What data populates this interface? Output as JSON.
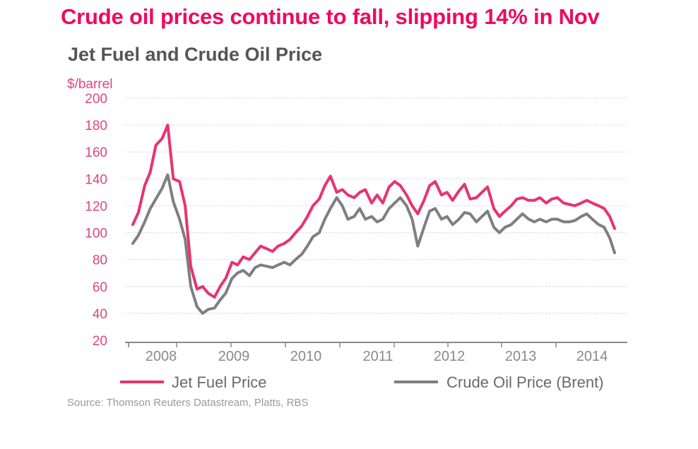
{
  "headline": "Crude oil prices continue to fall, slipping 14% in Nov",
  "chart_data": {
    "type": "line",
    "title": "Jet Fuel and Crude Oil Price",
    "ylabel": "$/barrel",
    "xlabel": "",
    "ylim": [
      20,
      200
    ],
    "yticks": [
      20,
      40,
      60,
      80,
      100,
      120,
      140,
      160,
      180,
      200
    ],
    "xlim": [
      2008.0,
      2014.95
    ],
    "xtick_labels": [
      "2008",
      "2009",
      "2010",
      "2011",
      "2012",
      "2013",
      "2014"
    ],
    "grid": "horizontal-dotted",
    "legend_position": "bottom",
    "source": "Source: Thomson Reuters Datastream, Platts, RBS",
    "x": [
      2008.0,
      2008.08,
      2008.17,
      2008.25,
      2008.33,
      2008.42,
      2008.5,
      2008.58,
      2008.67,
      2008.75,
      2008.83,
      2008.92,
      2009.0,
      2009.08,
      2009.17,
      2009.25,
      2009.33,
      2009.42,
      2009.5,
      2009.58,
      2009.67,
      2009.75,
      2009.83,
      2009.92,
      2010.0,
      2010.08,
      2010.17,
      2010.25,
      2010.33,
      2010.42,
      2010.5,
      2010.58,
      2010.67,
      2010.75,
      2010.83,
      2010.92,
      2011.0,
      2011.08,
      2011.17,
      2011.25,
      2011.33,
      2011.42,
      2011.5,
      2011.58,
      2011.67,
      2011.75,
      2011.83,
      2011.92,
      2012.0,
      2012.08,
      2012.17,
      2012.25,
      2012.33,
      2012.42,
      2012.5,
      2012.58,
      2012.67,
      2012.75,
      2012.83,
      2012.92,
      2013.0,
      2013.08,
      2013.17,
      2013.25,
      2013.33,
      2013.42,
      2013.5,
      2013.58,
      2013.67,
      2013.75,
      2013.83,
      2013.92,
      2014.0,
      2014.08,
      2014.17,
      2014.25,
      2014.33,
      2014.42,
      2014.5,
      2014.58,
      2014.67,
      2014.75,
      2014.83,
      2014.9
    ],
    "series": [
      {
        "name": "Jet Fuel Price",
        "color": "#e8336f",
        "values": [
          106,
          115,
          135,
          145,
          165,
          170,
          180,
          140,
          138,
          120,
          75,
          58,
          60,
          55,
          52,
          60,
          66,
          78,
          76,
          82,
          80,
          85,
          90,
          88,
          86,
          90,
          92,
          95,
          100,
          105,
          112,
          120,
          125,
          135,
          142,
          130,
          132,
          128,
          126,
          130,
          132,
          122,
          128,
          122,
          134,
          138,
          135,
          128,
          120,
          114,
          124,
          135,
          138,
          128,
          130,
          124,
          131,
          136,
          125,
          126,
          130,
          134,
          118,
          112,
          116,
          120,
          125,
          126,
          124,
          124,
          126,
          122,
          125,
          126,
          122,
          121,
          120,
          122,
          124,
          122,
          120,
          118,
          112,
          103
        ]
      },
      {
        "name": "Crude Oil Price (Brent)",
        "color": "#7f7f7f",
        "values": [
          92,
          98,
          108,
          118,
          125,
          133,
          143,
          123,
          110,
          95,
          60,
          45,
          40,
          43,
          44,
          50,
          55,
          66,
          70,
          72,
          68,
          74,
          76,
          75,
          74,
          76,
          78,
          76,
          80,
          84,
          90,
          97,
          100,
          110,
          118,
          126,
          120,
          110,
          112,
          118,
          110,
          112,
          108,
          110,
          118,
          122,
          126,
          120,
          110,
          90,
          104,
          116,
          118,
          110,
          112,
          106,
          110,
          115,
          114,
          108,
          112,
          116,
          104,
          100,
          104,
          106,
          110,
          114,
          110,
          108,
          110,
          108,
          110,
          110,
          108,
          108,
          109,
          112,
          114,
          110,
          106,
          104,
          96,
          85
        ]
      }
    ]
  }
}
